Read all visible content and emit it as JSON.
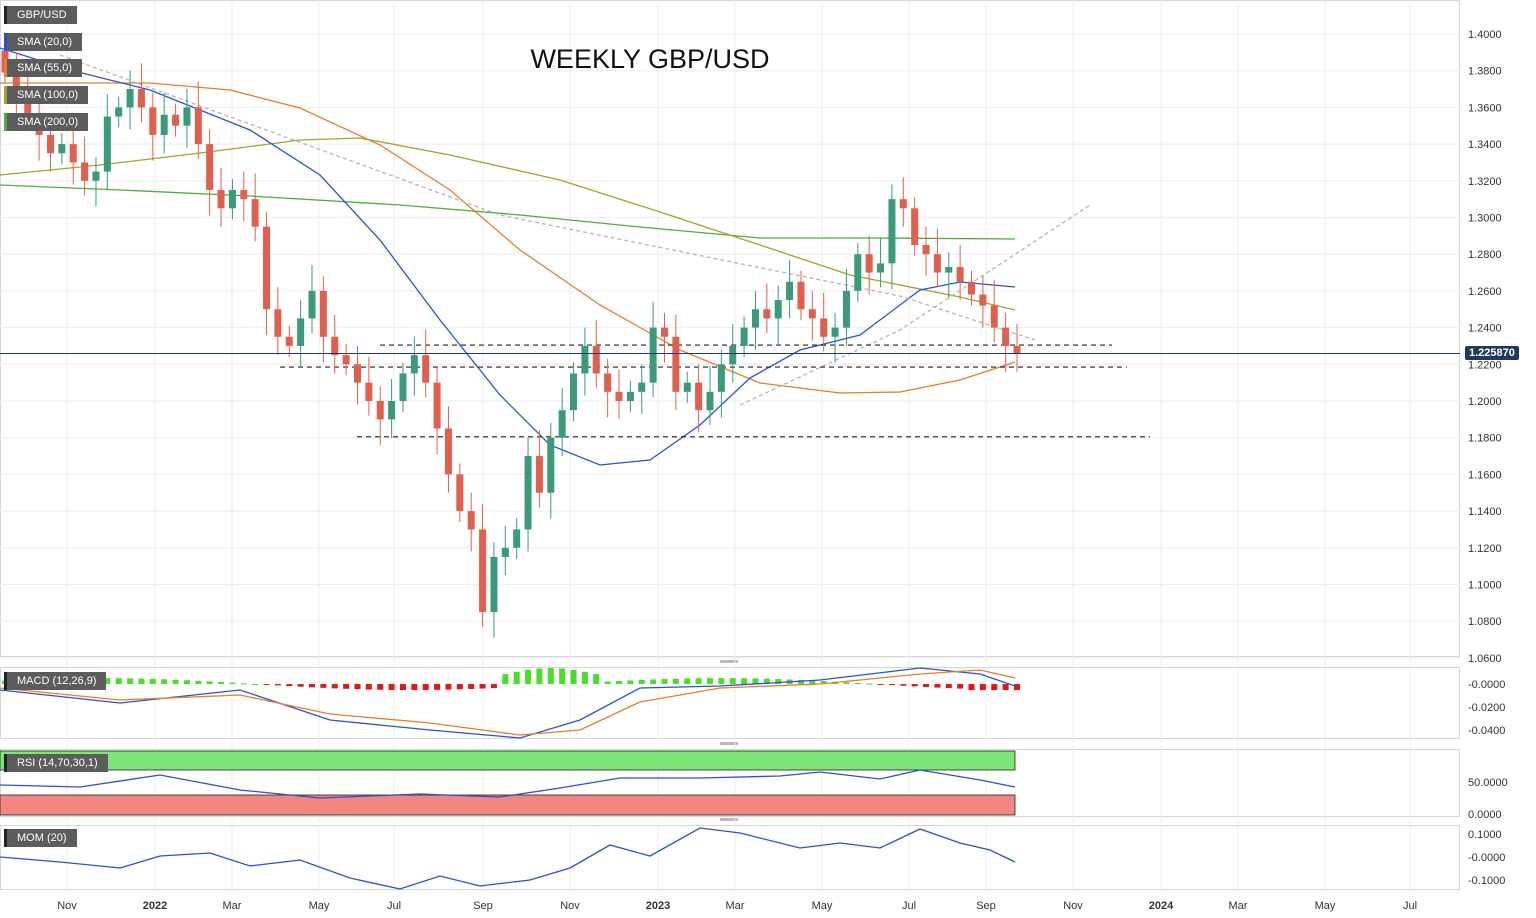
{
  "title": "WEEKLY GBP/USD",
  "symbol": "GBP/USD",
  "last_price": "1.225870",
  "indicators": {
    "sma20": "SMA (20,0)",
    "sma55": "SMA (55,0)",
    "sma100": "SMA (100,0)",
    "sma200": "SMA (200,0)",
    "macd": "MACD (12,26,9)",
    "rsi": "RSI (14,70,30,1)",
    "mom": "MOM (20)"
  },
  "colors": {
    "up": "#3a9a7a",
    "down": "#e0604f",
    "sma20": "#2b50d8",
    "sma55": "#e87d2a",
    "sma100": "#a6a02d",
    "sma200": "#4caf3a",
    "price_line": "#1f3a5f",
    "macd_pos": "#4cdc2e",
    "macd_neg": "#ee1111",
    "rsi_line": "#2b50d8",
    "mom_line": "#2b50d8"
  },
  "chart_data": [
    {
      "type": "candlestick",
      "title": "WEEKLY GBP/USD",
      "y_ticks": [
        "1.4000",
        "1.3800",
        "1.3600",
        "1.3400",
        "1.3200",
        "1.3000",
        "1.2800",
        "1.2600",
        "1.2400",
        "1.2200",
        "1.2000",
        "1.1800",
        "1.1600",
        "1.1400",
        "1.1200",
        "1.1000",
        "1.0800",
        "1.0600"
      ],
      "ylim": [
        1.055,
        1.412
      ],
      "x_ticks": [
        "Nov",
        "2022",
        "Mar",
        "May",
        "Jul",
        "Sep",
        "Nov",
        "2023",
        "Mar",
        "May",
        "Jul",
        "Sep",
        "Nov",
        "2024",
        "Mar",
        "May",
        "Jul"
      ],
      "levels": [
        1.2305,
        1.2185,
        1.1805
      ],
      "last": 1.22587,
      "closes": [
        1.379,
        1.369,
        1.355,
        1.345,
        1.335,
        1.34,
        1.33,
        1.32,
        1.325,
        1.355,
        1.36,
        1.37,
        1.36,
        1.345,
        1.356,
        1.35,
        1.36,
        1.34,
        1.315,
        1.305,
        1.315,
        1.31,
        1.295,
        1.25,
        1.235,
        1.23,
        1.245,
        1.26,
        1.235,
        1.225,
        1.22,
        1.21,
        1.2,
        1.19,
        1.2,
        1.215,
        1.225,
        1.21,
        1.185,
        1.16,
        1.14,
        1.13,
        1.085,
        1.115,
        1.12,
        1.13,
        1.17,
        1.15,
        1.18,
        1.195,
        1.215,
        1.23,
        1.215,
        1.205,
        1.2,
        1.205,
        1.21,
        1.24,
        1.235,
        1.205,
        1.21,
        1.195,
        1.205,
        1.22,
        1.23,
        1.24,
        1.25,
        1.245,
        1.255,
        1.265,
        1.25,
        1.245,
        1.235,
        1.24,
        1.26,
        1.28,
        1.27,
        1.275,
        1.31,
        1.305,
        1.285,
        1.28,
        1.27,
        1.273,
        1.265,
        1.258,
        1.252,
        1.24,
        1.23,
        1.2259
      ]
    },
    {
      "type": "bar",
      "name": "MACD (12,26,9)",
      "y_ticks": [
        "-0.0000",
        "-0.0200",
        "-0.0400"
      ],
      "ylim": [
        -0.047,
        0.014
      ]
    },
    {
      "type": "line",
      "name": "RSI (14,70,30,1)",
      "y_ticks": [
        "50.0000",
        "0.0000"
      ],
      "overbought": 70,
      "oversold": 30
    },
    {
      "type": "line",
      "name": "MOM (20)",
      "y_ticks": [
        "0.1000",
        "-0.0000",
        "-0.1000"
      ],
      "ylim": [
        -0.14,
        0.14
      ]
    }
  ]
}
